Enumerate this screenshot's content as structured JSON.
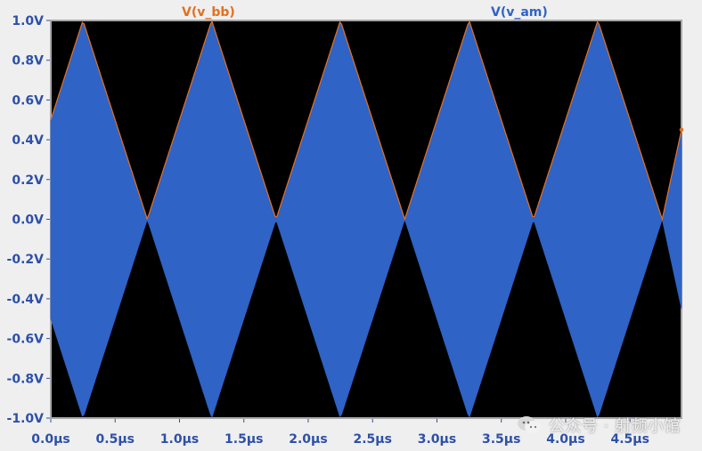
{
  "chart_data": {
    "type": "line",
    "title": "",
    "xlabel": "",
    "ylabel": "",
    "x_unit": "µs",
    "y_unit": "V",
    "xlim": [
      0.0,
      4.9
    ],
    "ylim": [
      -1.0,
      1.0
    ],
    "x_ticks": [
      "0.0µs",
      "0.5µs",
      "1.0µs",
      "1.5µs",
      "2.0µs",
      "2.5µs",
      "3.0µs",
      "3.5µs",
      "4.0µs",
      "4.5µs"
    ],
    "y_ticks": [
      "1.0V",
      "0.8V",
      "0.6V",
      "0.4V",
      "0.2V",
      "0.0V",
      "-0.2V",
      "-0.4V",
      "-0.6V",
      "-0.8V",
      "-1.0V"
    ],
    "series": [
      {
        "name": "V(v_bb)",
        "color": "#e66f1e",
        "role": "envelope",
        "x": [
          0.0,
          0.25,
          0.5,
          0.75,
          1.0,
          1.25,
          1.5,
          1.75,
          2.0,
          2.25,
          2.5,
          2.75,
          3.0,
          3.25,
          3.5,
          3.75,
          4.0,
          4.25,
          4.5,
          4.75,
          4.9
        ],
        "y": [
          0.5,
          1.0,
          0.5,
          0.0,
          0.5,
          1.0,
          0.5,
          0.0,
          0.5,
          1.0,
          0.5,
          0.0,
          0.5,
          1.0,
          0.5,
          0.0,
          0.5,
          1.0,
          0.5,
          0.0,
          0.45
        ]
      },
      {
        "name": "V(v_am)",
        "color": "#2f63c5",
        "role": "am-filled",
        "x": [
          0.0,
          0.25,
          0.5,
          0.75,
          1.0,
          1.25,
          1.5,
          1.75,
          2.0,
          2.25,
          2.5,
          2.75,
          3.0,
          3.25,
          3.5,
          3.75,
          4.0,
          4.25,
          4.5,
          4.75,
          4.9
        ],
        "y_upper": [
          0.5,
          1.0,
          0.5,
          0.0,
          0.5,
          1.0,
          0.5,
          0.0,
          0.5,
          1.0,
          0.5,
          0.0,
          0.5,
          1.0,
          0.5,
          0.0,
          0.5,
          1.0,
          0.5,
          0.0,
          0.45
        ],
        "y_lower": [
          -0.5,
          -1.0,
          -0.5,
          0.0,
          -0.5,
          -1.0,
          -0.5,
          0.0,
          -0.5,
          -1.0,
          -0.5,
          0.0,
          -0.5,
          -1.0,
          -0.5,
          0.0,
          -0.5,
          -1.0,
          -0.5,
          0.0,
          -0.45
        ]
      }
    ],
    "grid": false
  },
  "watermark": {
    "text": "公众号 · 射频小馆",
    "icon": "wechat-icon"
  }
}
